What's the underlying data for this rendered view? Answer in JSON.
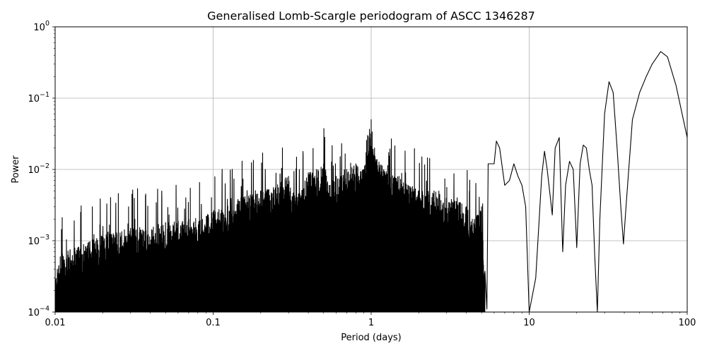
{
  "chart_data": {
    "type": "line",
    "title": "Generalised Lomb-Scargle periodogram of ASCC 1346287",
    "xlabel": "Period (days)",
    "ylabel": "Power",
    "xscale": "log",
    "yscale": "log",
    "xlim": [
      0.01,
      100
    ],
    "ylim": [
      0.0001,
      1
    ],
    "grid": true,
    "line_color": "#000000",
    "grid_color": "#b0b0b0",
    "x_ticks": [
      {
        "value": 0.01,
        "label": "0.01"
      },
      {
        "value": 0.1,
        "label": "0.1"
      },
      {
        "value": 1,
        "label": "1"
      },
      {
        "value": 10,
        "label": "10"
      },
      {
        "value": 100,
        "label": "100"
      }
    ],
    "y_ticks": [
      {
        "value": 0.0001,
        "base": "10",
        "exp": "−4"
      },
      {
        "value": 0.001,
        "base": "10",
        "exp": "−3"
      },
      {
        "value": 0.01,
        "base": "10",
        "exp": "−2"
      },
      {
        "value": 0.1,
        "base": "10",
        "exp": "−1"
      },
      {
        "value": 1,
        "base": "10",
        "exp": "0"
      }
    ],
    "series": [
      {
        "x": [
          0.01,
          0.02,
          0.03,
          0.05,
          0.07,
          0.1,
          0.15,
          0.2,
          0.25,
          0.3,
          0.333,
          0.4,
          0.45,
          0.5,
          0.55,
          0.6,
          0.7,
          0.8,
          0.9,
          0.95,
          1.0,
          1.05,
          1.2,
          1.5,
          2.0,
          2.5,
          3.0,
          3.5,
          4.0,
          4.5,
          5.0,
          5.4,
          5.5,
          6.0,
          6.2,
          6.5,
          7.0,
          7.5,
          8.0,
          8.5,
          9.0,
          9.5,
          10.0,
          11.0,
          12.0,
          12.5,
          13.0,
          14.0,
          14.6,
          15.5,
          16.3,
          17.0,
          18.0,
          19.0,
          20.0,
          21.0,
          22.0,
          23.0,
          24.0,
          25.0,
          26.0,
          27.0,
          28.0,
          30.0,
          32.0,
          34.0,
          36.0,
          38.0,
          39.5,
          41.0,
          45.0,
          50.0,
          55.0,
          60.0,
          68.0,
          75.0,
          85.0,
          100.0
        ],
        "y": [
          0.0006,
          0.0012,
          0.0015,
          0.0018,
          0.002,
          0.0025,
          0.004,
          0.005,
          0.006,
          0.008,
          0.004,
          0.009,
          0.01,
          0.012,
          0.006,
          0.008,
          0.01,
          0.012,
          0.01,
          0.03,
          0.05,
          0.02,
          0.01,
          0.008,
          0.005,
          0.005,
          0.004,
          0.004,
          0.003,
          0.002,
          0.003,
          0.00011,
          0.012,
          0.012,
          0.025,
          0.02,
          0.006,
          0.007,
          0.012,
          0.008,
          0.006,
          0.003,
          0.0001,
          0.0003,
          0.008,
          0.018,
          0.01,
          0.0023,
          0.02,
          0.028,
          0.0007,
          0.006,
          0.013,
          0.01,
          0.0008,
          0.012,
          0.022,
          0.02,
          0.01,
          0.006,
          0.0006,
          0.0001,
          0.002,
          0.06,
          0.17,
          0.12,
          0.02,
          0.003,
          0.0009,
          0.003,
          0.05,
          0.12,
          0.2,
          0.3,
          0.45,
          0.38,
          0.15,
          0.028
        ]
      }
    ]
  }
}
